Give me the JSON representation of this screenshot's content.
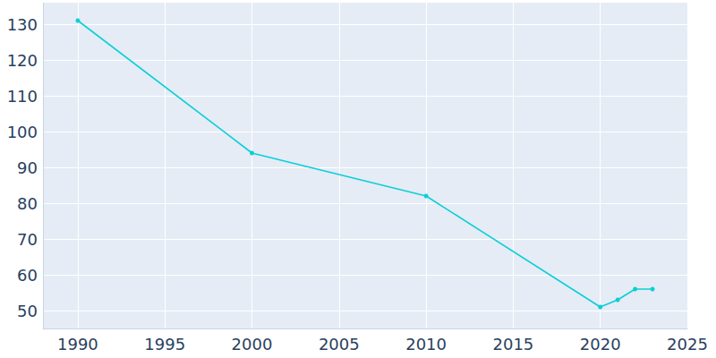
{
  "chart_data": {
    "type": "line",
    "x": [
      1990,
      2000,
      2010,
      2020,
      2021,
      2022,
      2023
    ],
    "values": [
      131,
      94,
      82,
      51,
      53,
      56,
      56
    ],
    "color": "#0bcfd6",
    "marker": "circle",
    "xlim": [
      1988,
      2025
    ],
    "xticks": [
      1990,
      1995,
      2000,
      2005,
      2010,
      2015,
      2020,
      2025
    ],
    "ylim": [
      45,
      136
    ],
    "yticks": [
      50,
      60,
      70,
      80,
      90,
      100,
      110,
      120,
      130
    ],
    "grid": true
  }
}
